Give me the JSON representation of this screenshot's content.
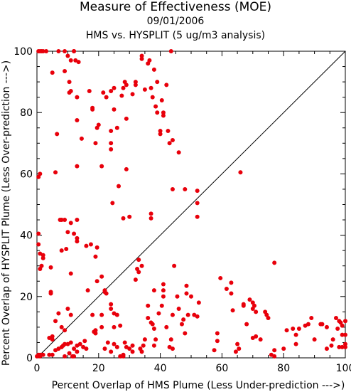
{
  "chart_data": {
    "type": "scatter",
    "title": "Measure of Effectiveness (MOE)",
    "subtitle": "09/01/2006",
    "subtitle2": "HMS vs. HYSPLIT  (5 ug/m3 analysis)",
    "xlabel": "Percent Overlap of HMS Plume (Less Under-prediction --->)",
    "ylabel": "Percent Overlap of HYSPLIT Plume (Less Over-prediction --->)",
    "xlim": [
      0,
      100
    ],
    "ylim": [
      0,
      100
    ],
    "xticks": [
      0,
      20,
      40,
      60,
      80,
      100
    ],
    "yticks": [
      0,
      20,
      40,
      60,
      80,
      100
    ],
    "grid": false,
    "reference_line": {
      "from": [
        0,
        0
      ],
      "to": [
        100,
        100
      ]
    },
    "marker_color": "#e8000b",
    "points": [
      [
        0.5,
        100
      ],
      [
        1,
        100
      ],
      [
        1.5,
        100
      ],
      [
        2,
        100
      ],
      [
        3,
        100
      ],
      [
        7,
        100
      ],
      [
        9,
        100
      ],
      [
        12,
        100
      ],
      [
        10,
        98.5
      ],
      [
        11,
        97
      ],
      [
        12.5,
        97
      ],
      [
        13.5,
        96.5
      ],
      [
        9,
        93.5
      ],
      [
        5,
        93
      ],
      [
        10.5,
        90
      ],
      [
        11,
        87
      ],
      [
        10.5,
        86.5
      ],
      [
        13,
        85
      ],
      [
        17,
        87
      ],
      [
        18,
        81.5
      ],
      [
        18,
        81
      ],
      [
        13,
        77.5
      ],
      [
        14.5,
        71.5
      ],
      [
        6.5,
        73
      ],
      [
        1,
        60
      ],
      [
        0.5,
        59
      ],
      [
        6,
        60.5
      ],
      [
        13,
        62.5
      ],
      [
        21,
        62.5
      ],
      [
        19.5,
        75
      ],
      [
        20,
        76
      ],
      [
        19,
        70
      ],
      [
        21.5,
        86.5
      ],
      [
        24,
        74
      ],
      [
        24,
        70
      ],
      [
        24,
        68
      ],
      [
        25,
        81
      ],
      [
        26,
        75
      ],
      [
        27.5,
        85.5
      ],
      [
        28,
        88
      ],
      [
        28.5,
        90
      ],
      [
        29,
        89
      ],
      [
        31,
        86
      ],
      [
        32,
        90
      ],
      [
        32,
        89
      ],
      [
        34,
        97.5
      ],
      [
        35,
        87.5
      ],
      [
        36,
        96
      ],
      [
        36.5,
        97
      ],
      [
        38,
        94
      ],
      [
        37.5,
        85
      ],
      [
        37,
        88
      ],
      [
        38.5,
        82
      ],
      [
        39,
        90
      ],
      [
        40,
        74
      ],
      [
        40,
        73
      ],
      [
        41,
        79
      ],
      [
        42,
        89
      ],
      [
        43.5,
        100
      ],
      [
        40.5,
        84
      ],
      [
        39,
        80
      ],
      [
        41,
        80
      ],
      [
        42.5,
        74
      ],
      [
        43,
        70
      ],
      [
        44,
        71
      ],
      [
        46,
        67
      ],
      [
        29,
        78
      ],
      [
        29,
        61.5
      ],
      [
        26.5,
        56
      ],
      [
        24.5,
        50.5
      ],
      [
        28,
        45.5
      ],
      [
        30,
        46
      ],
      [
        37,
        47
      ],
      [
        37,
        45.5
      ],
      [
        44,
        55
      ],
      [
        48,
        55
      ],
      [
        52,
        54.5
      ],
      [
        52,
        50.5
      ],
      [
        52,
        46
      ],
      [
        66,
        60.5
      ],
      [
        34,
        98.5
      ],
      [
        22.5,
        85
      ],
      [
        24,
        87
      ],
      [
        25,
        88
      ],
      [
        12,
        100
      ],
      [
        0.5,
        40.5
      ],
      [
        0.5,
        37
      ],
      [
        1,
        34
      ],
      [
        2,
        33.5
      ],
      [
        2,
        32.5
      ],
      [
        1,
        29
      ],
      [
        1.5,
        30
      ],
      [
        4.5,
        29.5
      ],
      [
        7.5,
        45
      ],
      [
        8,
        45
      ],
      [
        9,
        45
      ],
      [
        11,
        44
      ],
      [
        13,
        45
      ],
      [
        12,
        40.5
      ],
      [
        10,
        41
      ],
      [
        13,
        39
      ],
      [
        13,
        38
      ],
      [
        8,
        35
      ],
      [
        9.5,
        35.5
      ],
      [
        16,
        36.5
      ],
      [
        17.5,
        37
      ],
      [
        19.5,
        36
      ],
      [
        19,
        33
      ],
      [
        19.5,
        25
      ],
      [
        21,
        26.5
      ],
      [
        11,
        27.5
      ],
      [
        4.5,
        21.5
      ],
      [
        4.5,
        21
      ],
      [
        16.5,
        22
      ],
      [
        22,
        21.5
      ],
      [
        22,
        22
      ],
      [
        22.5,
        21
      ],
      [
        24,
        17.5
      ],
      [
        24,
        16
      ],
      [
        25,
        14.5
      ],
      [
        26,
        14
      ],
      [
        21,
        14
      ],
      [
        18,
        14
      ],
      [
        19,
        9
      ],
      [
        18.5,
        8.5
      ],
      [
        19,
        8
      ],
      [
        21,
        10
      ],
      [
        25,
        10
      ],
      [
        27,
        10.5
      ],
      [
        23,
        5
      ],
      [
        22,
        3
      ],
      [
        24,
        2
      ],
      [
        25,
        4.5
      ],
      [
        26,
        3.5
      ],
      [
        28.5,
        5
      ],
      [
        29,
        3.5
      ],
      [
        30,
        3
      ],
      [
        31,
        4
      ],
      [
        31,
        2
      ],
      [
        28,
        0.5
      ],
      [
        27,
        0.5
      ],
      [
        28,
        1
      ],
      [
        33.5,
        3
      ],
      [
        34,
        2
      ],
      [
        34.5,
        4
      ],
      [
        35,
        6
      ],
      [
        33,
        32
      ],
      [
        32.5,
        29
      ],
      [
        32,
        25.5
      ],
      [
        34,
        30
      ],
      [
        33,
        28
      ],
      [
        36,
        17
      ],
      [
        36,
        13
      ],
      [
        37,
        11.5
      ],
      [
        38,
        22
      ],
      [
        37.5,
        11
      ],
      [
        38,
        9.5
      ],
      [
        38.5,
        6
      ],
      [
        38,
        4
      ],
      [
        39.5,
        14.5
      ],
      [
        40.5,
        17
      ],
      [
        41,
        20
      ],
      [
        41,
        24
      ],
      [
        41,
        22
      ],
      [
        42,
        10
      ],
      [
        43,
        3.5
      ],
      [
        44,
        3
      ],
      [
        43.5,
        6
      ],
      [
        44.5,
        30
      ],
      [
        44,
        14
      ],
      [
        46,
        16
      ],
      [
        45.5,
        20
      ],
      [
        47,
        11
      ],
      [
        47.5,
        12.5
      ],
      [
        48,
        8
      ],
      [
        48.5,
        23.5
      ],
      [
        48.5,
        21
      ],
      [
        49,
        14
      ],
      [
        50,
        20
      ],
      [
        51,
        14
      ],
      [
        52.5,
        18
      ],
      [
        52,
        13.5
      ],
      [
        9,
        0.5
      ],
      [
        1,
        0.5
      ],
      [
        1.5,
        1
      ],
      [
        2,
        1
      ],
      [
        4,
        1
      ],
      [
        5,
        1
      ],
      [
        6,
        2.5
      ],
      [
        7,
        3
      ],
      [
        8,
        3.5
      ],
      [
        8.5,
        4
      ],
      [
        9,
        4.5
      ],
      [
        10,
        4.5
      ],
      [
        11,
        5
      ],
      [
        12,
        3
      ],
      [
        13,
        4
      ],
      [
        14,
        4.5
      ],
      [
        15,
        3.5
      ],
      [
        15.5,
        5.5
      ],
      [
        11,
        14
      ],
      [
        10,
        16
      ],
      [
        6,
        12
      ],
      [
        7,
        14.5
      ],
      [
        8,
        10
      ],
      [
        9,
        9
      ],
      [
        4,
        6.5
      ],
      [
        5,
        7
      ],
      [
        5,
        6
      ],
      [
        10.5,
        1.5
      ],
      [
        11.5,
        0.5
      ],
      [
        12,
        0.5
      ],
      [
        13,
        2
      ],
      [
        16,
        3
      ],
      [
        1,
        1
      ],
      [
        0.5,
        1
      ],
      [
        0,
        0.5
      ],
      [
        59.5,
        26
      ],
      [
        58.5,
        8
      ],
      [
        58.5,
        5.5
      ],
      [
        57.5,
        2.5
      ],
      [
        61.5,
        22.5
      ],
      [
        63,
        24.5
      ],
      [
        63,
        21
      ],
      [
        63.5,
        15.5
      ],
      [
        65,
        4.5
      ],
      [
        65.5,
        3
      ],
      [
        64.5,
        2
      ],
      [
        67,
        17.5
      ],
      [
        67,
        17
      ],
      [
        68,
        11
      ],
      [
        69,
        19
      ],
      [
        70,
        18
      ],
      [
        70,
        16
      ],
      [
        70,
        6.5
      ],
      [
        70.5,
        17
      ],
      [
        71,
        15
      ],
      [
        71,
        7
      ],
      [
        72.5,
        6
      ],
      [
        74,
        15
      ],
      [
        74.5,
        14
      ],
      [
        75,
        13
      ],
      [
        77,
        31
      ],
      [
        77,
        2.5
      ],
      [
        76,
        1
      ],
      [
        77,
        0.5
      ],
      [
        80,
        3
      ],
      [
        81,
        9
      ],
      [
        83,
        9.5
      ],
      [
        84,
        7.5
      ],
      [
        84,
        4.5
      ],
      [
        85,
        9.5
      ],
      [
        87,
        10.5
      ],
      [
        88,
        11
      ],
      [
        89,
        13
      ],
      [
        90,
        6
      ],
      [
        92,
        11
      ],
      [
        92.5,
        11
      ],
      [
        94,
        10
      ],
      [
        94,
        3
      ],
      [
        95.5,
        4
      ],
      [
        96,
        6
      ],
      [
        97,
        13
      ],
      [
        98,
        12
      ],
      [
        98.5,
        11.5
      ],
      [
        97.5,
        9.5
      ],
      [
        99,
        10.5
      ],
      [
        99,
        7.5
      ],
      [
        100,
        7.5
      ],
      [
        98,
        3.5
      ],
      [
        99,
        3.5
      ],
      [
        100,
        3.5
      ],
      [
        100,
        4.5
      ],
      [
        100,
        12
      ]
    ]
  }
}
